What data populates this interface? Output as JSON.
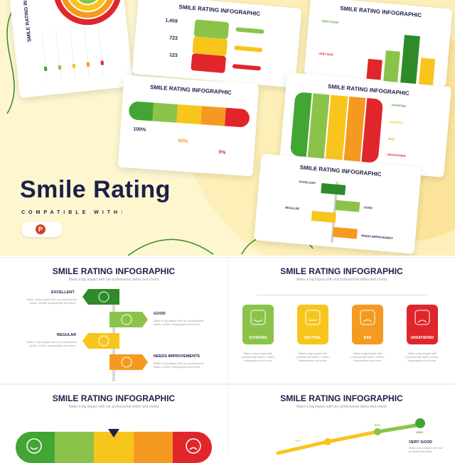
{
  "colors": {
    "green": "#43a533",
    "lightgreen": "#8bc34a",
    "yellow": "#f7c51c",
    "orange": "#f59a21",
    "red": "#e0262b",
    "navy": "#1c1f4a"
  },
  "hero": {
    "title": "Smile Rating",
    "compatible": "COMPATIBLE WITH:",
    "powerpoint_letter": "P"
  },
  "hero_cards": {
    "card_tl_title": "SMILE RATING IN",
    "card_tc_title": "SMILE RATING INFOGRAPHIC",
    "card_tc_numbers": [
      "1,459",
      "723",
      "123"
    ],
    "card_tr_title": "SMILE RATING INFOGRAPHIC",
    "card_tr_labels": [
      "VERY GOOD",
      "VERY BAD"
    ],
    "card_ml_title": "SMILE RATING INFOGRAPHIC",
    "card_ml_values": [
      "100%",
      "50%",
      "0%"
    ],
    "card_mr_title": "SMILE RATING INFOGRAPHIC",
    "card_mr_labels": [
      "SATISFIED",
      "NEUTRAL",
      "BAD",
      "UNSATISFIED"
    ],
    "card_br_title": "SMILE RATING INFOGRAPHIC",
    "card_br_labels": [
      "EXCELLENT",
      "GOOD",
      "REGULAR",
      "NEEDS IMPROVEMENT"
    ]
  },
  "panel1": {
    "title": "SMILE RATING INFOGRAPHIC",
    "subtitle": "Make a big impact with our professional slides and charts",
    "items": [
      {
        "label": "EXCELLENT",
        "desc": "Make a big impact with our professional slides, charts, infographics and more."
      },
      {
        "label": "GOOD",
        "desc": "Make a big impact with our professional slides, charts, infographics and more."
      },
      {
        "label": "REGULAR",
        "desc": "Make a big impact with our professional slides, charts, infographics and more."
      },
      {
        "label": "NEEDS IMPROVEMENTS",
        "desc": "Make a big impact with our professional slides, charts, infographics and more."
      }
    ]
  },
  "panel2": {
    "title": "SMILE RATING INFOGRAPHIC",
    "subtitle": "Make a big impact with our professional slides and charts",
    "items": [
      {
        "label": "SATISFIED",
        "desc": "Make a big impact with professional slides, charts, infographics and more."
      },
      {
        "label": "NEUTRAL",
        "desc": "Make a big impact with professional slides, charts, infographics and more."
      },
      {
        "label": "BAD",
        "desc": "Make a big impact with professional slides, charts, infographics and more."
      },
      {
        "label": "UNSATISFIED",
        "desc": "Make a big impact with professional slides, charts, infographics and more."
      }
    ]
  },
  "panel3": {
    "title": "SMILE RATING INFOGRAPHIC",
    "subtitle": "Make a big impact with our professional slides and charts"
  },
  "panel4": {
    "title": "SMILE RATING INFOGRAPHIC",
    "subtitle": "Make a big impact with our professional slides and charts",
    "points": [
      "50%",
      "80%",
      "100%"
    ],
    "label": "VERY GOOD",
    "desc": "Make a big impact with our professional slides"
  }
}
